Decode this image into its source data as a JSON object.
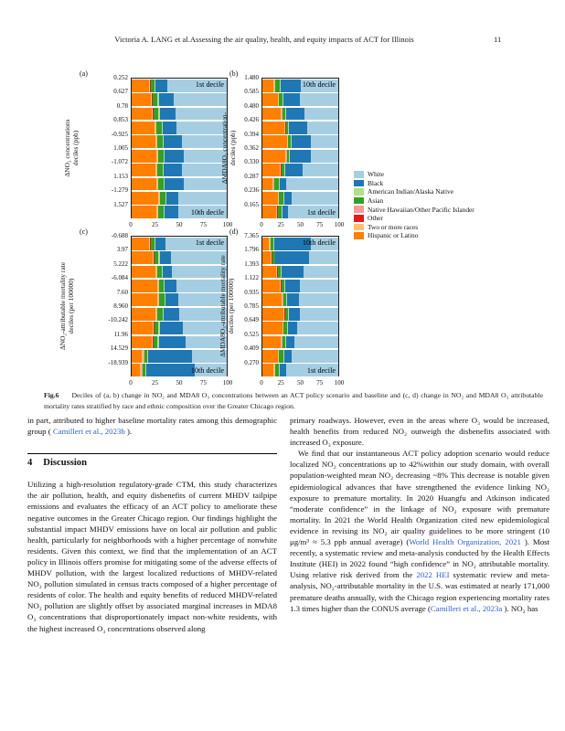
{
  "header": {
    "title": "Victoria A. LANG et al.Assessing the air quality, health, and equity impacts of ACT for Illinois",
    "page_number": "11"
  },
  "figure": {
    "xticks": [
      "0",
      "25",
      "50",
      "75",
      "100"
    ],
    "series_order": [
      "Hispanic or Latino",
      "Two or more races",
      "Other",
      "Native Hawaiian/Other Pacific Islander",
      "Asian",
      "American Indian/Alaska Native",
      "Black",
      "White"
    ],
    "series_colors": [
      "#ff7f00",
      "#fdbf6f",
      "#e31a1c",
      "#fb9a99",
      "#33a02c",
      "#b2df8a",
      "#1f78b4",
      "#a6cee3"
    ],
    "legend": {
      "entries": [
        {
          "label": "White",
          "color": "#a6cee3"
        },
        {
          "label": "Black",
          "color": "#1f78b4"
        },
        {
          "label": "American Indian/Alaska Native",
          "color": "#b2df8a"
        },
        {
          "label": "Asian",
          "color": "#33a02c"
        },
        {
          "label": "Native Hawaiian/Other Pacific Islander",
          "color": "#fb9a99"
        },
        {
          "label": "Other",
          "color": "#e31a1c"
        },
        {
          "label": "Two or more races",
          "color": "#fdbf6f"
        },
        {
          "label": "Hispanic or Latino",
          "color": "#ff7f00"
        }
      ]
    },
    "charts": [
      {
        "panel": "(a)",
        "type": "stacked-bar-horizontal",
        "ylabel1": "ΔNO₂ concentrations",
        "ylabel2": "deciles (ppb)",
        "yticks": [
          "0.252",
          "0.627",
          "0.78",
          "0.853",
          "-0.925",
          "1.005",
          "-1.072",
          "1.153",
          "-1.279",
          "1.527"
        ],
        "anno_top": "1st decile",
        "anno_bottom": "10th decile",
        "xlim": [
          0,
          100
        ],
        "bars": [
          [
            18,
            1.5,
            0.4,
            0.4,
            4,
            1.2,
            12,
            62.5
          ],
          [
            20,
            1.5,
            0.4,
            0.4,
            5,
            1.2,
            16,
            55.5
          ],
          [
            21,
            1.5,
            0.4,
            0.4,
            5,
            1.2,
            17,
            53.5
          ],
          [
            24,
            1.5,
            0.4,
            0.4,
            5,
            1.2,
            15,
            52.5
          ],
          [
            25,
            1.5,
            0.4,
            0.4,
            5,
            1.2,
            19,
            47.5
          ],
          [
            26,
            1.5,
            0.4,
            0.4,
            5,
            1.2,
            20,
            45.5
          ],
          [
            25,
            1.5,
            0.4,
            0.4,
            5,
            1.2,
            19,
            47.5
          ],
          [
            26,
            1.5,
            0.4,
            0.4,
            5,
            1.2,
            20,
            45.5
          ],
          [
            28,
            1.5,
            0.4,
            0.4,
            5,
            1.2,
            13,
            50.5
          ],
          [
            26,
            1.5,
            0.4,
            0.4,
            5,
            1.2,
            15,
            50.5
          ]
        ]
      },
      {
        "panel": "(b)",
        "type": "stacked-bar-horizontal",
        "ylabel1": "ΔMDA8O₃ concentration-",
        "ylabel2": "deciles (ppb)",
        "yticks": [
          "1.480",
          "0.585",
          "0.480",
          "0.426",
          "0.394",
          "0.362",
          "0.330",
          "0.287",
          "0.236",
          "0.165"
        ],
        "anno_top": "10th decile",
        "anno_bottom": "1st decile",
        "xlim": [
          0,
          100
        ],
        "bars": [
          [
            15,
            1.5,
            0.4,
            0.4,
            6,
            1.2,
            26,
            49.5
          ],
          [
            20,
            1.5,
            0.4,
            0.4,
            4,
            1.2,
            22,
            50.5
          ],
          [
            24,
            1.5,
            0.4,
            0.4,
            3.5,
            1.2,
            25,
            44.0
          ],
          [
            29,
            1.5,
            0.4,
            0.4,
            3,
            1.2,
            24,
            40.5
          ],
          [
            32,
            1.5,
            0.4,
            0.4,
            3,
            1.2,
            25,
            36.5
          ],
          [
            30,
            1.5,
            0.4,
            0.4,
            3,
            1.2,
            27,
            36.5
          ],
          [
            23,
            1.5,
            0.4,
            0.4,
            4,
            1.2,
            23,
            46.5
          ],
          [
            13,
            1.5,
            0.4,
            0.4,
            6,
            1.2,
            9,
            68.5
          ],
          [
            20,
            1.5,
            0.4,
            0.4,
            6,
            1.2,
            9,
            61.5
          ],
          [
            18,
            1.5,
            0.4,
            0.4,
            5,
            1.2,
            7,
            66.5
          ]
        ]
      },
      {
        "panel": "(c)",
        "type": "stacked-bar-horizontal",
        "ylabel1": "ΔNO₂-attributable mortality rate",
        "ylabel2": "deciles (per 100000)",
        "yticks": [
          "-0.688",
          "3.97",
          "5.222",
          "-6.084",
          "7.60",
          "8.960",
          "-10.242",
          "11.96",
          "14.529",
          "-18.939"
        ],
        "anno_top": "1st decile",
        "anno_bottom": "10th decile",
        "xlim": [
          0,
          100
        ],
        "bars": [
          [
            18,
            1.5,
            0.4,
            0.4,
            4,
            1.2,
            10,
            64.5
          ],
          [
            22,
            1.5,
            0.4,
            0.4,
            4,
            1.2,
            12,
            58.5
          ],
          [
            25,
            1.5,
            0.4,
            0.4,
            4,
            1.2,
            10,
            57.5
          ],
          [
            27,
            1.5,
            0.4,
            0.4,
            4,
            1.2,
            13,
            52.5
          ],
          [
            27,
            1.5,
            0.4,
            0.4,
            5,
            1.2,
            14,
            50.5
          ],
          [
            25,
            1.5,
            0.4,
            0.4,
            5,
            1.2,
            17,
            49.5
          ],
          [
            22,
            1.5,
            0.4,
            0.4,
            4,
            1.2,
            24,
            46.5
          ],
          [
            21,
            1.5,
            0.4,
            0.4,
            4,
            1.2,
            28,
            43.5
          ],
          [
            11,
            1.5,
            0.4,
            0.4,
            3,
            1.2,
            46,
            36.5
          ],
          [
            9,
            1.5,
            0.4,
            0.4,
            3,
            1.2,
            51,
            33.5
          ]
        ]
      },
      {
        "panel": "(d)",
        "type": "stacked-bar-horizontal",
        "ylabel1": "ΔMDA8O₃-attributable mortality rate",
        "ylabel2": "deciles (per 100000)",
        "yticks": [
          "7.365",
          "1.796",
          "1.393",
          "1.122",
          "0.935",
          "0.785",
          "0.649",
          "0.525",
          "0.409",
          "0.270"
        ],
        "anno_top": "10th decile",
        "anno_bottom": "1st decile",
        "xlim": [
          0,
          100
        ],
        "bars": [
          [
            9,
            1.5,
            0.4,
            0.4,
            3,
            1.2,
            48,
            36.5
          ],
          [
            11,
            1.5,
            0.4,
            0.4,
            3,
            1.2,
            44,
            38.5
          ],
          [
            18,
            1.5,
            0.4,
            0.4,
            4,
            1.2,
            29,
            45.5
          ],
          [
            23,
            1.5,
            0.4,
            0.4,
            4,
            1.2,
            19,
            50.5
          ],
          [
            25,
            1.5,
            0.4,
            0.4,
            4,
            1.2,
            16,
            51.5
          ],
          [
            28,
            1.5,
            0.4,
            0.4,
            3,
            1.2,
            15,
            50.5
          ],
          [
            26,
            1.5,
            0.4,
            0.4,
            4,
            1.2,
            12,
            54.5
          ],
          [
            24,
            1.5,
            0.4,
            0.4,
            4,
            1.2,
            11,
            57.5
          ],
          [
            20,
            1.5,
            0.4,
            0.4,
            5,
            1.2,
            10,
            61.5
          ],
          [
            15,
            1.5,
            0.4,
            0.4,
            5,
            1.2,
            8,
            68.5
          ]
        ]
      }
    ],
    "caption": {
      "label": "Fig.6",
      "text": "Deciles of (a, b) change in NO₂ and MDA8 O₃ concentrations between an ACT policy scenario and baseline and (c, d) change in NO₂ and MDA8 O₃ attributable mortality rates stratified by race and ethnic composition over the Greater Chicago region."
    }
  },
  "body": {
    "left_column": {
      "para1": [
        {
          "t": "in part, attributed to higher baseline mortality rates among this demographic group ( "
        },
        {
          "t": "Camilleri et al., 2023b",
          "link": true
        },
        {
          "t": " )."
        }
      ],
      "section_number": "4",
      "section_title": "Discussion",
      "para2": [
        {
          "t": "Utilizing a high-resolution regulatory-grade CTM, this study characterizes the air pollution, health, and equity disbenefits of current MHDV tailpipe emissions and evaluates the efficacy of an ACT policy to ameliorate these negative outcomes in the Greater Chicago region. Our findings highlight the substantial impact MHDV emissions have on local air pollution and public health, particularly for neighborhoods with a higher percentage of nonwhite residents. Given this context, we find that the implementation of an ACT policy in Illinois offers promise for mitigating some of the adverse effects of MHDV pollution, with the largest localized reductions of MHDV-related NO₂ pollution simulated in census tracts composed of a higher percentage of residents of color. The health and equity benefits of reduced MHDV-related NO₂ pollution are slightly offset by associated marginal increases in MDA8 O₃ concentrations that disproportionately impact non-white residents, with the highest increased O₃ concentrations observed along"
        }
      ]
    },
    "right_column": {
      "para1": [
        {
          "t": "primary roadways. However, even in the areas where O₃ would be increased, health benefits from reduced NO₂ outweigh the disbenefits associated with increased O₃ exposure."
        }
      ],
      "para2": [
        {
          "t": "We find that our instantaneous ACT policy adoption scenario would reduce localized NO₂ concentrations up to 42%within our study domain, with overall population-weighted mean NO₂ decreasing ~8% This decrease is notable given epidemiological advances that have strengthened the evidence linking NO₂ exposure to premature mortality. In 2020 Huangfu and Atkinson indicated “moderate confidence” in the linkage of NO₂ exposure with premature mortality. In 2021 the World Health Organization cited new epidemiological evidence in revising its NO₂ air quality guidelines to be more stringent (10 μg/m³ ≈ 5.3 ppb annual average) ("
        },
        {
          "t": "World Health Organization, 2021",
          "link": true
        },
        {
          "t": " ). Most recently, a systematic review and meta-analysis conducted by the Health Effects Institute (HEI) in 2022 found “high confidence” in NO₂ attributable mortality. Using relative risk derived from the "
        },
        {
          "t": "2022 HEI",
          "link": true
        },
        {
          "t": " systematic review and meta-analysis, NO₂-attributable mortality in the U.S. was estimated at nearly 171,000 premature deaths annually, with the Chicago region experiencing mortality rates 1.3 times higher than the CONUS average ("
        },
        {
          "t": "Camilleri et al., 2023a",
          "link": true
        },
        {
          "t": " ). NO₂ has"
        }
      ]
    }
  }
}
